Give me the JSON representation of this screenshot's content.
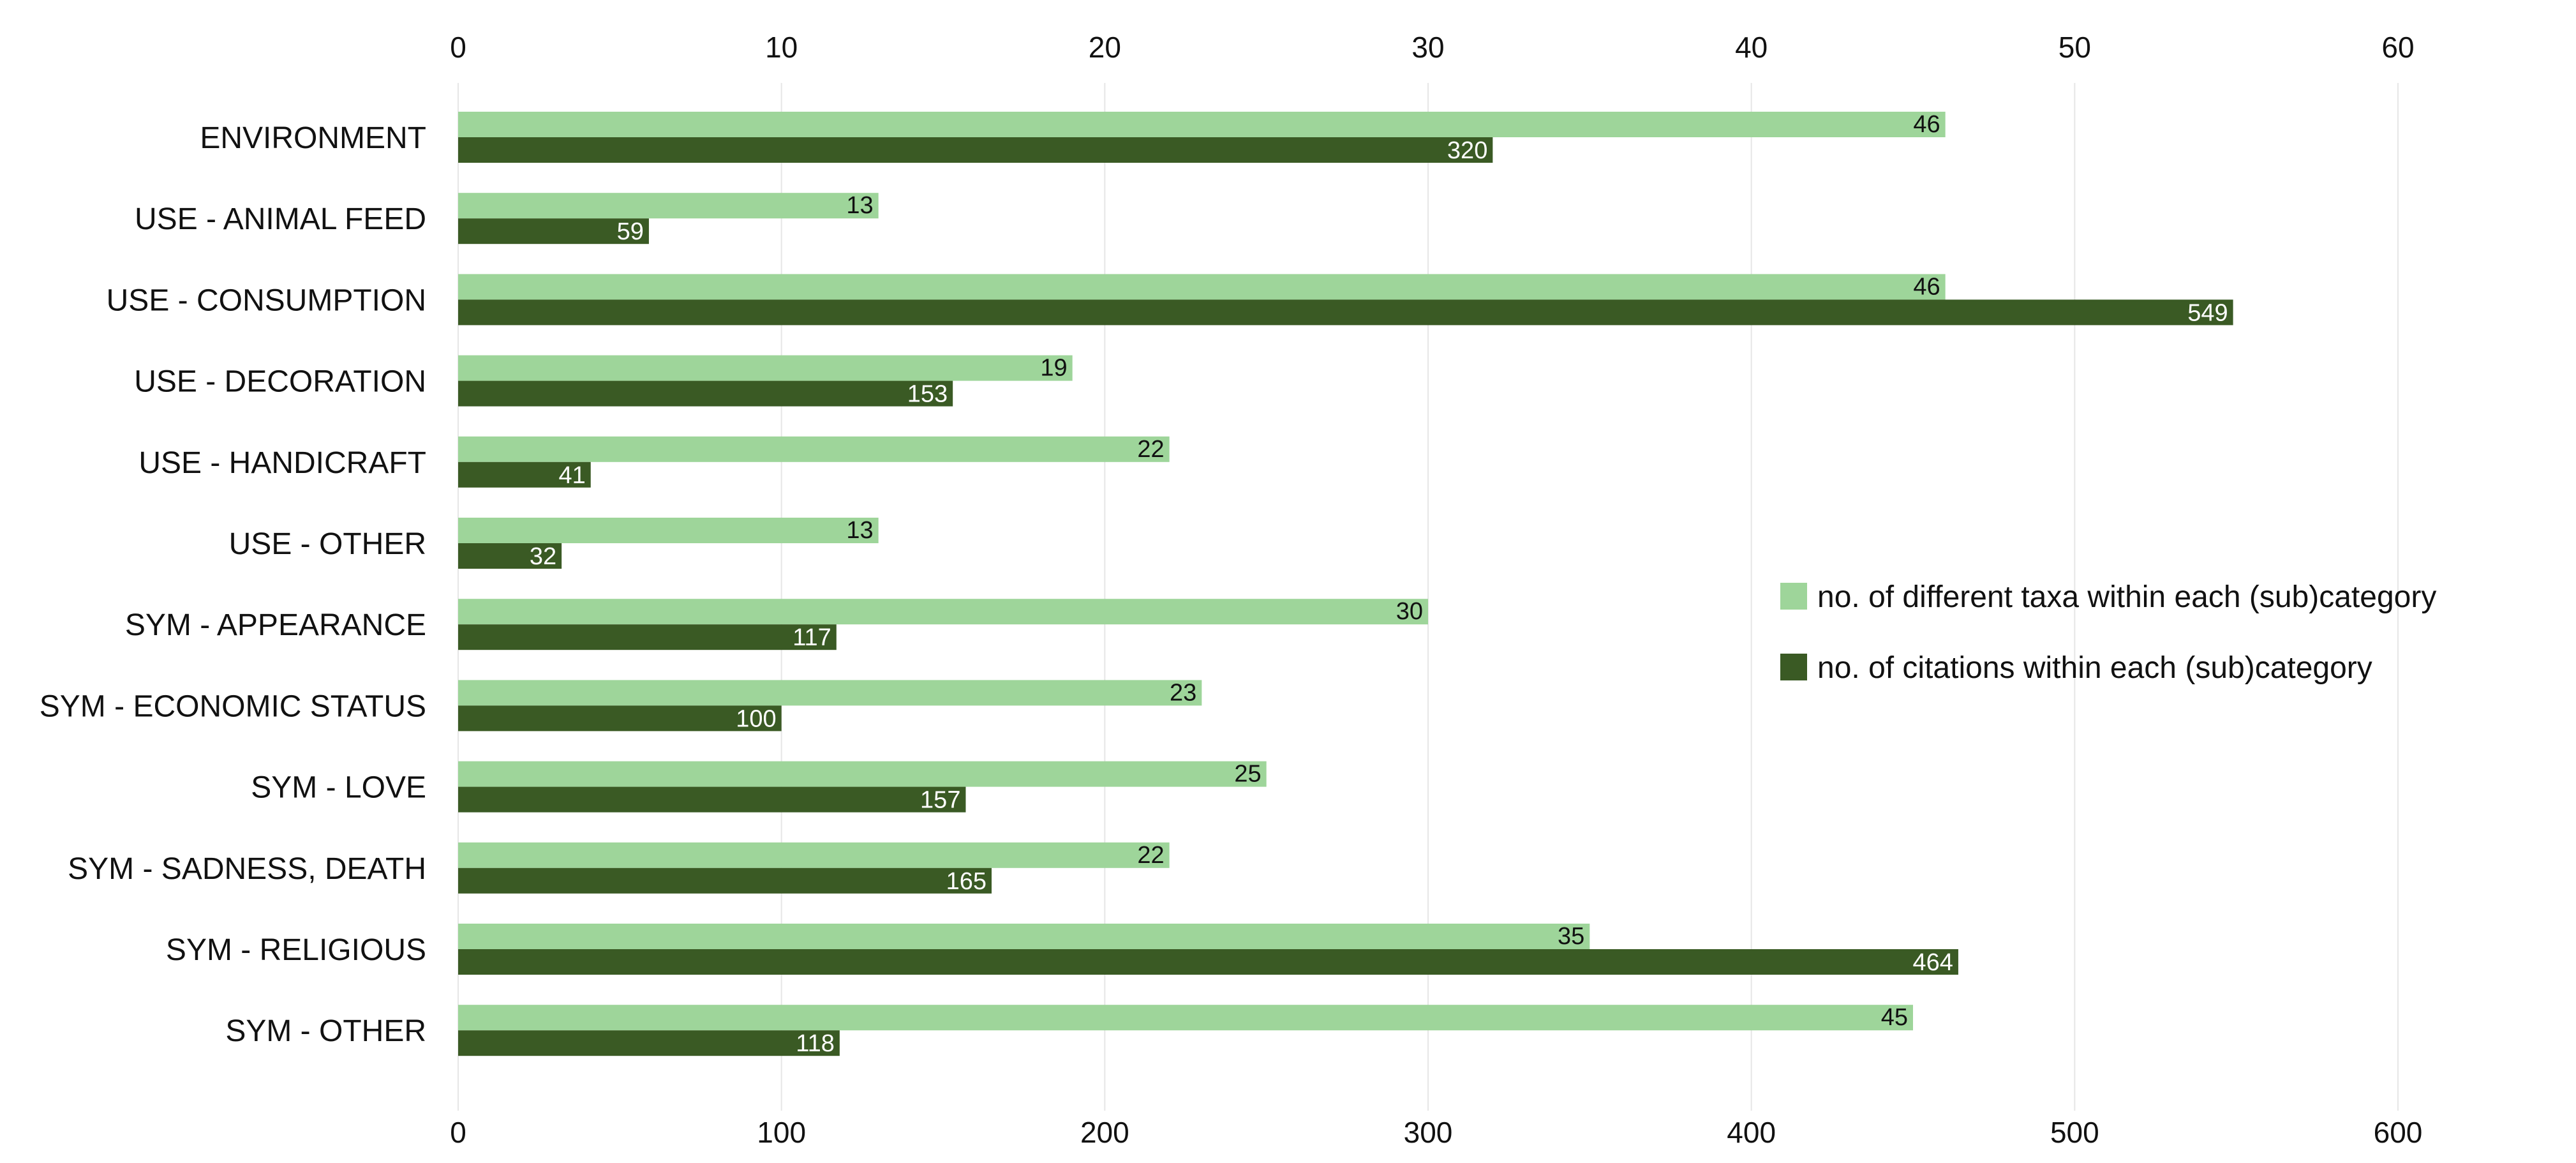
{
  "chart_data": {
    "type": "bar",
    "orientation": "horizontal",
    "categories": [
      "ENVIRONMENT",
      "USE - ANIMAL FEED",
      "USE - CONSUMPTION",
      "USE - DECORATION",
      "USE - HANDICRAFT",
      "USE - OTHER",
      "SYM - APPEARANCE",
      "SYM - ECONOMIC STATUS",
      "SYM - LOVE",
      "SYM - SADNESS, DEATH",
      "SYM - RELIGIOUS",
      "SYM - OTHER"
    ],
    "series": [
      {
        "name": "no. of different taxa within each (sub)category",
        "axis": "top",
        "color": "#9ed59a",
        "label_color": "#111111",
        "values": [
          46,
          13,
          46,
          19,
          22,
          13,
          30,
          23,
          25,
          22,
          35,
          45
        ]
      },
      {
        "name": "no. of citations within each (sub)category",
        "axis": "bottom",
        "color": "#3a5a24",
        "label_color": "#ffffff",
        "values": [
          320,
          59,
          549,
          153,
          41,
          32,
          117,
          100,
          157,
          165,
          464,
          118
        ]
      }
    ],
    "top_axis": {
      "range": [
        0,
        60
      ],
      "ticks": [
        "0",
        "10",
        "20",
        "30",
        "40",
        "50",
        "60"
      ]
    },
    "bottom_axis": {
      "range": [
        0,
        600
      ],
      "ticks": [
        "0",
        "100",
        "200",
        "300",
        "400",
        "500",
        "600"
      ]
    },
    "grid": true,
    "legend": "right"
  }
}
